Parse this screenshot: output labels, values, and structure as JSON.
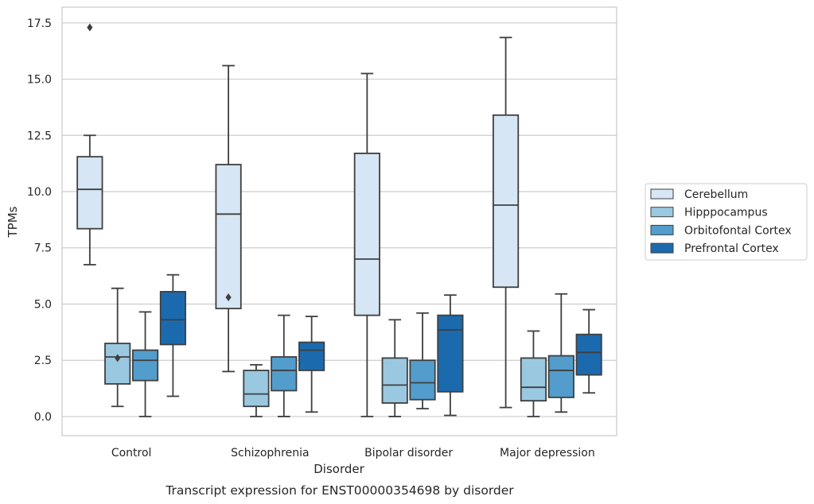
{
  "chart_data": {
    "type": "boxplot",
    "caption": "Transcript expression for ENST00000354698 by disorder",
    "xlabel": "Disorder",
    "ylabel": "TPMs",
    "ylim": [
      -0.85,
      18.2
    ],
    "yticks": [
      0.0,
      2.5,
      5.0,
      7.5,
      10.0,
      12.5,
      15.0,
      17.5
    ],
    "ytick_labels": [
      "0.0",
      "2.5",
      "5.0",
      "7.5",
      "10.0",
      "12.5",
      "15.0",
      "17.5"
    ],
    "grid": true,
    "legend_position": "right",
    "categories": [
      "Control",
      "Schizophrenia",
      "Bipolar disorder",
      "Major depression"
    ],
    "series": [
      {
        "name": "Cerebellum",
        "color": "#d6e6f4",
        "boxes": [
          {
            "whisker_low": 6.75,
            "q1": 8.35,
            "median": 10.1,
            "q3": 11.55,
            "whisker_high": 12.5,
            "outliers": [
              17.3
            ]
          },
          {
            "whisker_low": 2.0,
            "q1": 4.8,
            "median": 9.0,
            "q3": 11.2,
            "whisker_high": 15.6,
            "outliers": [
              5.3
            ]
          },
          {
            "whisker_low": 0.0,
            "q1": 4.5,
            "median": 7.0,
            "q3": 11.7,
            "whisker_high": 15.25,
            "outliers": []
          },
          {
            "whisker_low": 0.4,
            "q1": 5.75,
            "median": 9.4,
            "q3": 13.4,
            "whisker_high": 16.85,
            "outliers": []
          }
        ]
      },
      {
        "name": "Hipppocampus",
        "color": "#9ac8e0",
        "boxes": [
          {
            "whisker_low": 0.45,
            "q1": 1.45,
            "median": 2.65,
            "q3": 3.25,
            "whisker_high": 5.7,
            "outliers": [
              2.6
            ]
          },
          {
            "whisker_low": 0.0,
            "q1": 0.45,
            "median": 1.0,
            "q3": 2.05,
            "whisker_high": 2.3,
            "outliers": []
          },
          {
            "whisker_low": 0.0,
            "q1": 0.6,
            "median": 1.4,
            "q3": 2.6,
            "whisker_high": 4.3,
            "outliers": []
          },
          {
            "whisker_low": 0.0,
            "q1": 0.7,
            "median": 1.3,
            "q3": 2.6,
            "whisker_high": 3.8,
            "outliers": []
          }
        ]
      },
      {
        "name": "Orbitofontal Cortex",
        "color": "#529dcc",
        "boxes": [
          {
            "whisker_low": 0.0,
            "q1": 1.6,
            "median": 2.5,
            "q3": 2.95,
            "whisker_high": 4.65,
            "outliers": []
          },
          {
            "whisker_low": 0.0,
            "q1": 1.15,
            "median": 2.05,
            "q3": 2.65,
            "whisker_high": 4.5,
            "outliers": []
          },
          {
            "whisker_low": 0.35,
            "q1": 0.75,
            "median": 1.5,
            "q3": 2.5,
            "whisker_high": 4.6,
            "outliers": []
          },
          {
            "whisker_low": 0.2,
            "q1": 0.85,
            "median": 2.05,
            "q3": 2.7,
            "whisker_high": 5.45,
            "outliers": []
          }
        ]
      },
      {
        "name": "Prefrontal Cortex",
        "color": "#1c6aae",
        "boxes": [
          {
            "whisker_low": 0.9,
            "q1": 3.2,
            "median": 4.3,
            "q3": 5.55,
            "whisker_high": 6.3,
            "outliers": []
          },
          {
            "whisker_low": 0.2,
            "q1": 2.05,
            "median": 2.95,
            "q3": 3.3,
            "whisker_high": 4.45,
            "outliers": []
          },
          {
            "whisker_low": 0.05,
            "q1": 1.1,
            "median": 3.85,
            "q3": 4.5,
            "whisker_high": 5.4,
            "outliers": []
          },
          {
            "whisker_low": 1.05,
            "q1": 1.85,
            "median": 2.85,
            "q3": 3.65,
            "whisker_high": 4.75,
            "outliers": []
          }
        ]
      }
    ]
  }
}
